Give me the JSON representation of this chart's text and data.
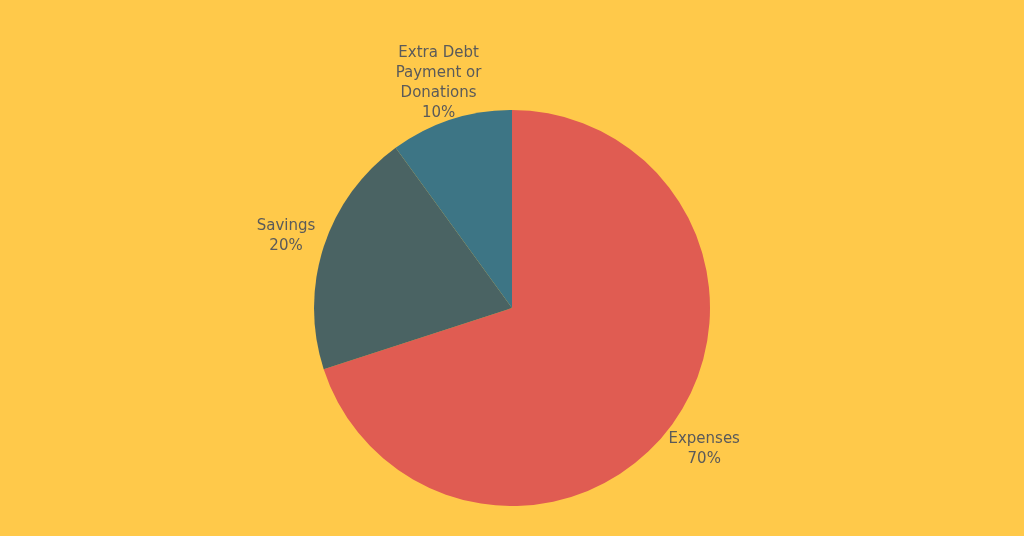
{
  "chart_data": {
    "type": "pie",
    "categories": [
      "Expenses",
      "Savings",
      "Extra Debt Payment or Donations"
    ],
    "values": [
      70,
      20,
      10
    ],
    "colors": [
      "#e05c52",
      "#4a6363",
      "#3d7585"
    ],
    "value_labels": [
      "70%",
      "20%",
      "10%"
    ]
  }
}
